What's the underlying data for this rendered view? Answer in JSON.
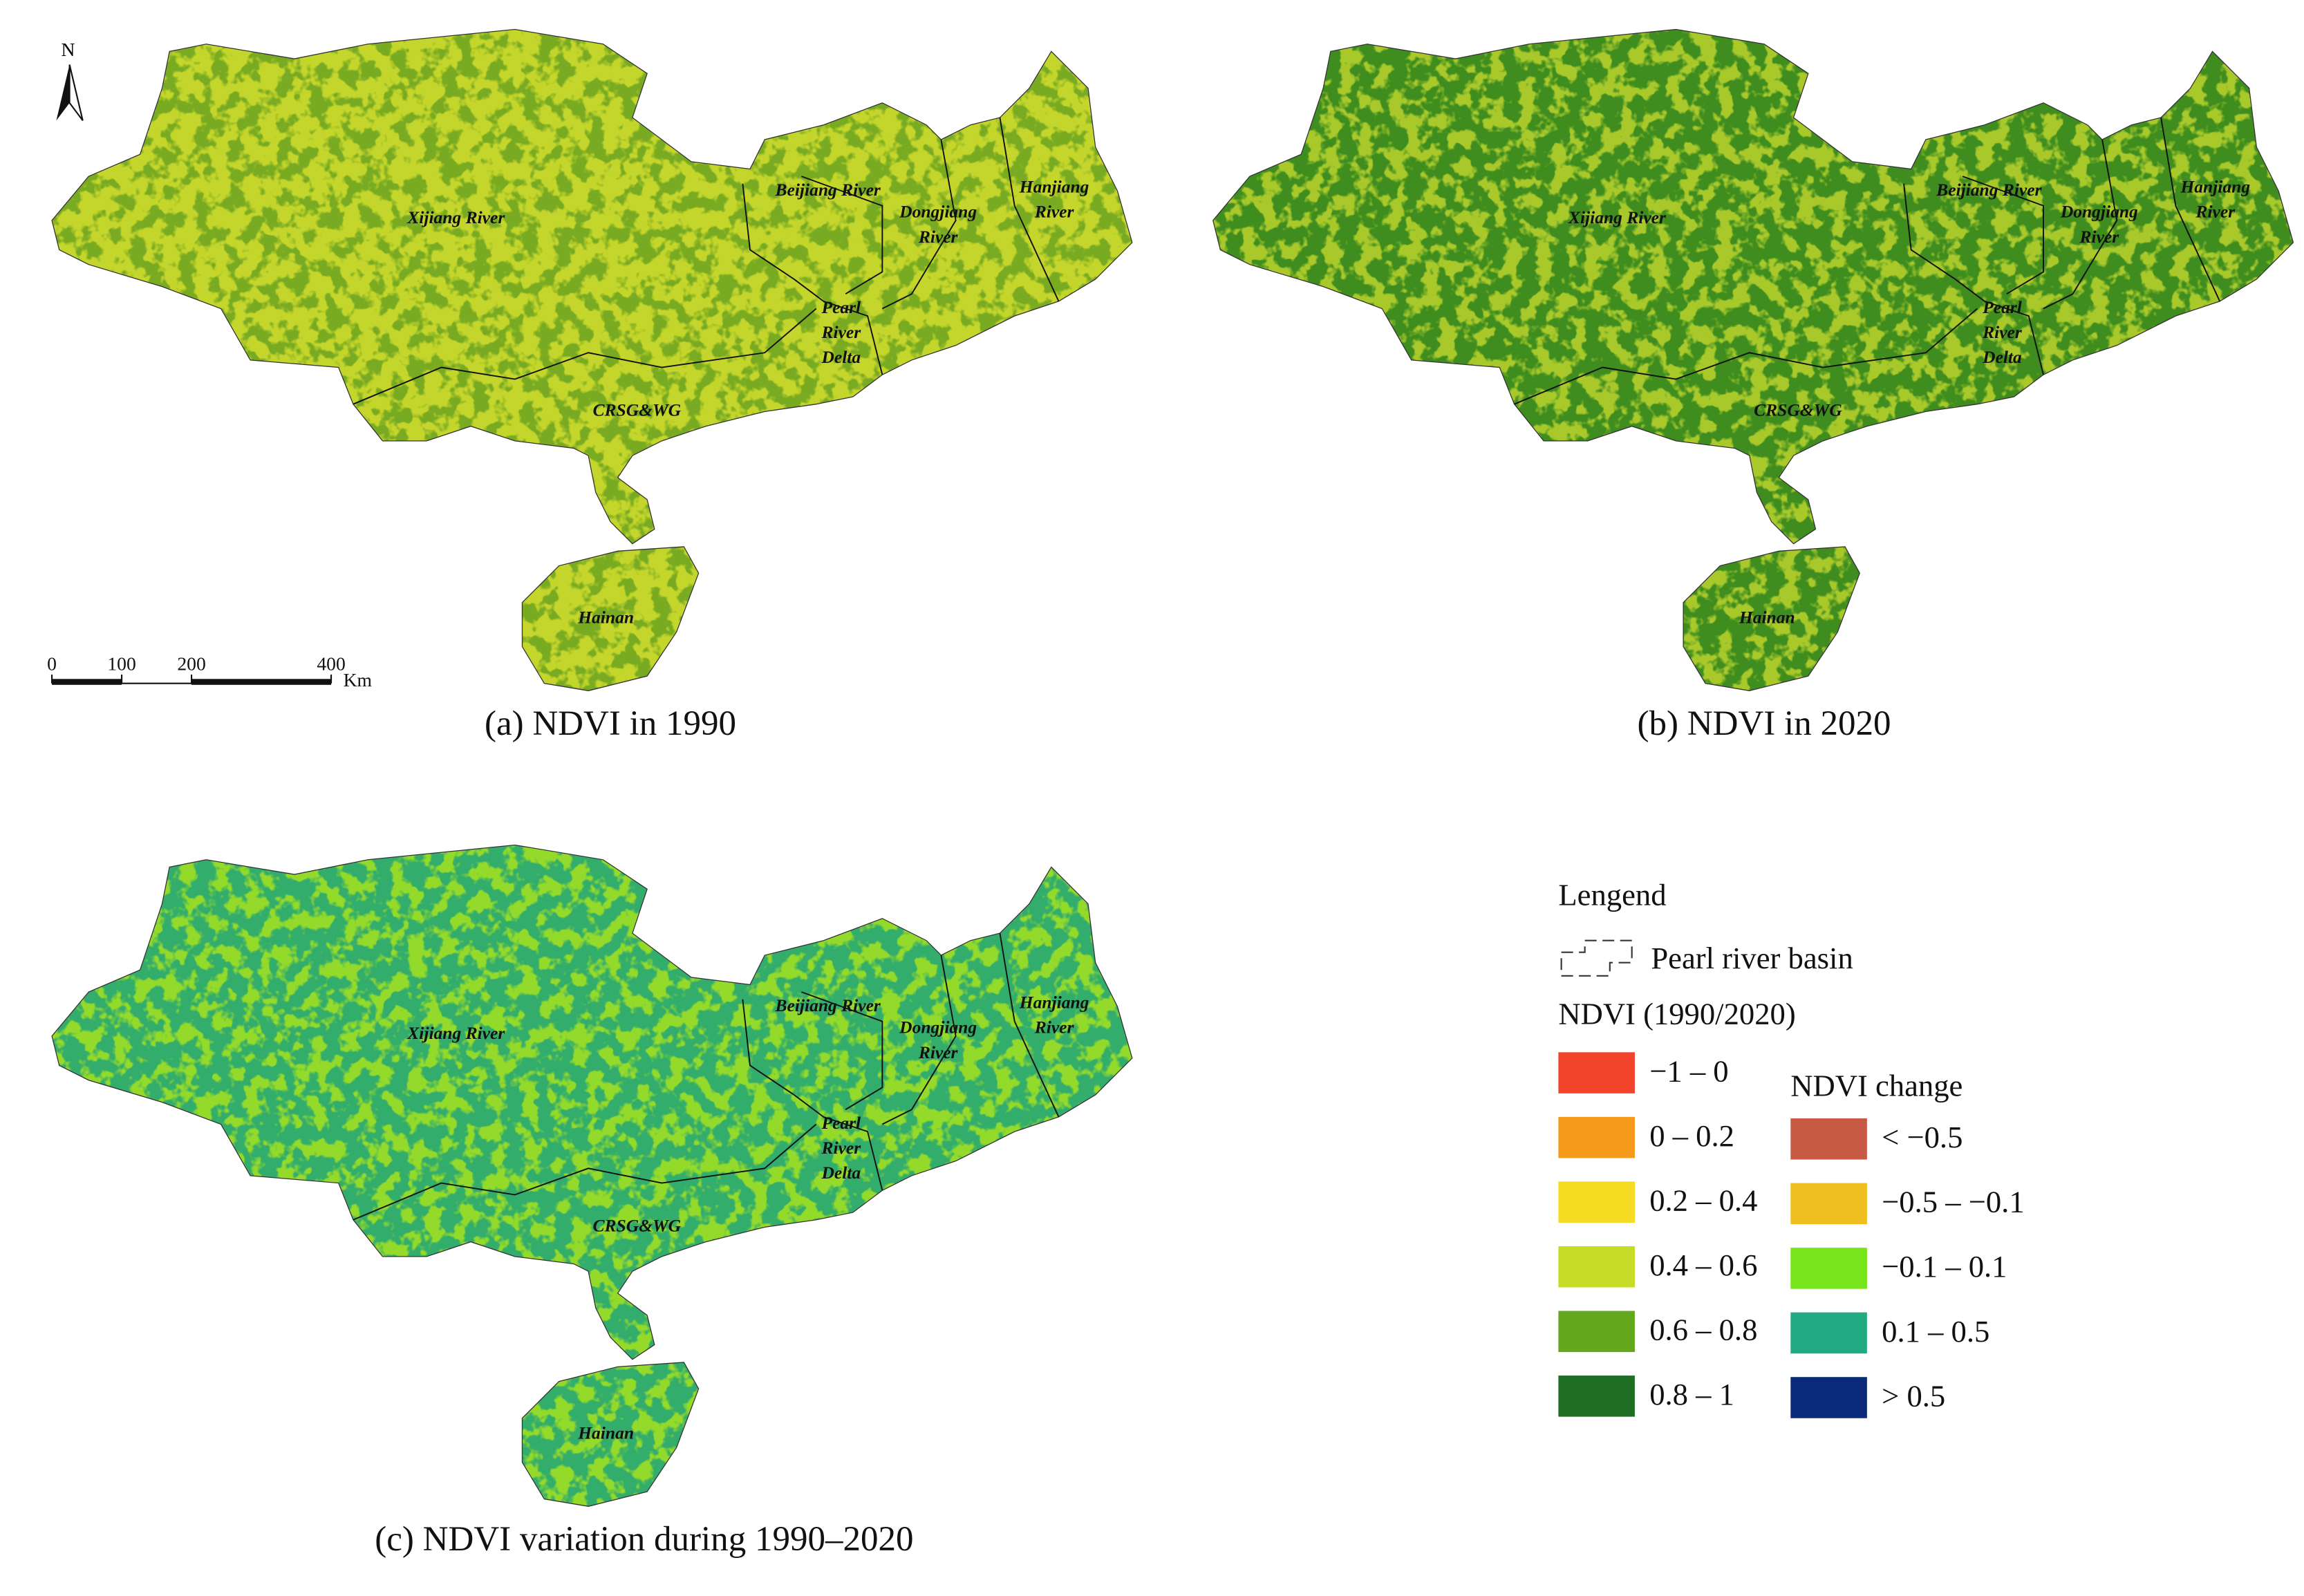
{
  "panels": [
    {
      "caption": "(a) NDVI in 1990",
      "colors": [
        "#c4d52b",
        "#79ab22"
      ]
    },
    {
      "caption": "(b) NDVI in 2020",
      "colors": [
        "#3e8d1e",
        "#a9c92c"
      ]
    },
    {
      "caption": "(c) NDVI variation during 1990–2020",
      "colors": [
        "#33ad6c",
        "#93da2b"
      ]
    }
  ],
  "region_labels": [
    {
      "lines": [
        "Xijiang River"
      ]
    },
    {
      "lines": [
        "Beijiang River"
      ]
    },
    {
      "lines": [
        "Dongjiang",
        "River"
      ]
    },
    {
      "lines": [
        "Hanjiang",
        "River"
      ]
    },
    {
      "lines": [
        "Pearl",
        "River",
        "Delta"
      ]
    },
    {
      "lines": [
        "CRSG&WG"
      ]
    },
    {
      "lines": [
        "Hainan"
      ]
    }
  ],
  "north_arrow": "N",
  "scale_bar": {
    "ticks": [
      0,
      100,
      200,
      400
    ],
    "unit": "Km"
  },
  "legend": {
    "title": "Lengend",
    "boundary": "Pearl river basin",
    "ndvi_title": "NDVI (1990/2020)",
    "ndvi": [
      {
        "label": "−1 – 0",
        "color": "#f2442a"
      },
      {
        "label": "0 – 0.2",
        "color": "#f69a1b"
      },
      {
        "label": "0.2 – 0.4",
        "color": "#f5dc22"
      },
      {
        "label": "0.4 – 0.6",
        "color": "#c5dd26"
      },
      {
        "label": "0.6 – 0.8",
        "color": "#64a81e"
      },
      {
        "label": "0.8 – 1",
        "color": "#1e6e24"
      }
    ],
    "change_title": "NDVI change",
    "change": [
      {
        "label": "< −0.5",
        "color": "#c75a45"
      },
      {
        "label": "−0.5 – −0.1",
        "color": "#efbe1f"
      },
      {
        "label": "−0.1 – 0.1",
        "color": "#76e51a"
      },
      {
        "label": "0.1 – 0.5",
        "color": "#22ab82"
      },
      {
        "label": "> 0.5",
        "color": "#0b2b7a"
      }
    ]
  }
}
